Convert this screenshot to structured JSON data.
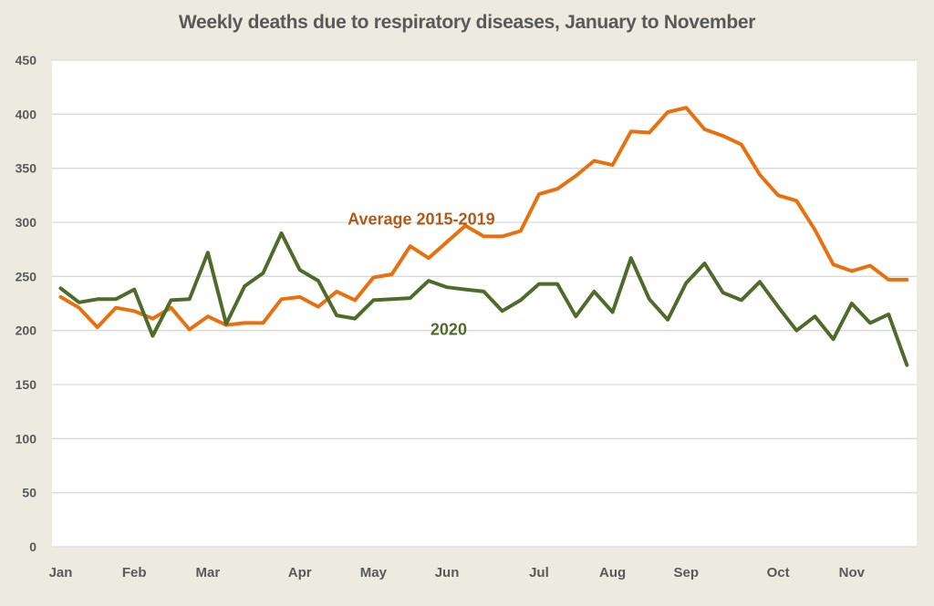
{
  "chart_data": {
    "type": "line",
    "title": "Weekly deaths due to respiratory diseases, January to November",
    "xlabel": "",
    "ylabel": "",
    "ylim": [
      0,
      450
    ],
    "yticks": [
      0,
      50,
      100,
      150,
      200,
      250,
      300,
      350,
      400,
      450
    ],
    "grid": true,
    "legend": "inline annotations",
    "x_unit": "week",
    "x_tick_labels": [
      {
        "label": "Jan",
        "week_index": 0
      },
      {
        "label": "Feb",
        "week_index": 4
      },
      {
        "label": "Mar",
        "week_index": 8
      },
      {
        "label": "Apr",
        "week_index": 13
      },
      {
        "label": "May",
        "week_index": 17
      },
      {
        "label": "Jun",
        "week_index": 21
      },
      {
        "label": "Jul",
        "week_index": 26
      },
      {
        "label": "Aug",
        "week_index": 30
      },
      {
        "label": "Sep",
        "week_index": 34
      },
      {
        "label": "Oct",
        "week_index": 39
      },
      {
        "label": "Nov",
        "week_index": 43
      }
    ],
    "series": [
      {
        "name": "Average 2015-2019",
        "color": "#E8700F",
        "label_color": "#B35A16",
        "label_anchor_week": 15.6,
        "label_anchor_value": 298,
        "values": [
          231,
          221,
          203,
          221,
          218,
          211,
          221,
          201,
          213,
          205,
          207,
          207,
          229,
          231,
          222,
          236,
          228,
          249,
          252,
          278,
          267,
          282,
          297,
          287,
          287,
          292,
          326,
          331,
          343,
          357,
          353,
          384,
          383,
          402,
          406,
          386,
          380,
          372,
          344,
          325,
          320,
          293,
          261,
          255,
          260,
          247,
          247
        ]
      },
      {
        "name": "2020",
        "color": "#4F6B2A",
        "label_color": "#4F6B2A",
        "label_anchor_week": 20.1,
        "label_anchor_value": 196,
        "values": [
          239,
          226,
          229,
          229,
          238,
          195,
          228,
          229,
          272,
          206,
          241,
          253,
          290,
          256,
          246,
          214,
          211,
          228,
          229,
          230,
          246,
          240,
          238,
          236,
          218,
          228,
          243,
          243,
          213,
          236,
          217,
          267,
          229,
          210,
          244,
          262,
          235,
          228,
          245,
          222,
          200,
          213,
          192,
          225,
          207,
          215,
          168
        ]
      }
    ]
  }
}
